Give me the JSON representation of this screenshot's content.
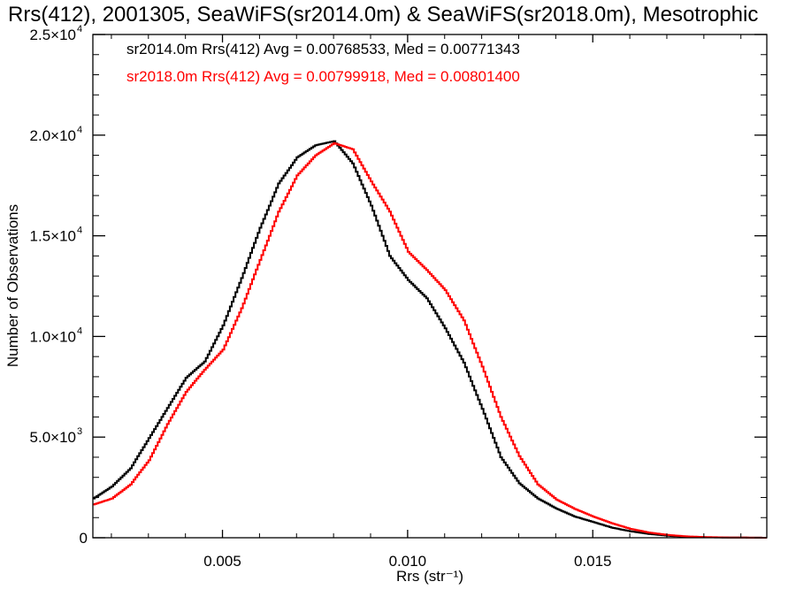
{
  "chart_data": {
    "type": "line",
    "title": "Rrs(412), 2001305, SeaWiFS(sr2014.0m) & SeaWiFS(sr2018.0m), Mesotrophic",
    "xlabel": "Rrs (str⁻¹)",
    "ylabel": "Number of Observations",
    "xlim": [
      0.0015,
      0.0197
    ],
    "ylim": [
      0,
      25000
    ],
    "x_ticks": [
      {
        "value": 0.005,
        "label": "0.005"
      },
      {
        "value": 0.01,
        "label": "0.010"
      },
      {
        "value": 0.015,
        "label": "0.015"
      }
    ],
    "y_ticks": [
      {
        "value": 0,
        "mant": "0",
        "exp": ""
      },
      {
        "value": 5000,
        "mant": "5.0×10",
        "exp": "3"
      },
      {
        "value": 10000,
        "mant": "1.0×10",
        "exp": "4"
      },
      {
        "value": 15000,
        "mant": "1.5×10",
        "exp": "4"
      },
      {
        "value": 20000,
        "mant": "2.0×10",
        "exp": "4"
      },
      {
        "value": 25000,
        "mant": "2.5×10",
        "exp": "4"
      }
    ],
    "grid": false,
    "legend_position": "top-left",
    "series": [
      {
        "name": "sr2014.0m",
        "color": "#000000",
        "legend": "sr2014.0m Rrs(412) Avg = 0.00768533, Med = 0.00771343",
        "x": [
          0.0015,
          0.002,
          0.0025,
          0.003,
          0.0035,
          0.004,
          0.0045,
          0.005,
          0.0055,
          0.006,
          0.0065,
          0.007,
          0.0075,
          0.008,
          0.0085,
          0.009,
          0.0095,
          0.01,
          0.0105,
          0.011,
          0.0115,
          0.012,
          0.0125,
          0.013,
          0.0135,
          0.014,
          0.0145,
          0.015,
          0.0155,
          0.016,
          0.0165,
          0.017,
          0.0175,
          0.018,
          0.0185,
          0.019,
          0.0197
        ],
        "y": [
          1950,
          2550,
          3450,
          4950,
          6450,
          7950,
          8750,
          10550,
          12900,
          15400,
          17600,
          18900,
          19500,
          19700,
          18600,
          16500,
          14000,
          12800,
          11900,
          10400,
          8700,
          6400,
          4000,
          2700,
          1950,
          1450,
          1050,
          780,
          500,
          320,
          190,
          100,
          50,
          25,
          15,
          8,
          0
        ]
      },
      {
        "name": "sr2018.0m",
        "color": "#ff0000",
        "legend": "sr2018.0m Rrs(412) Avg = 0.00799918, Med = 0.00801400",
        "x": [
          0.0015,
          0.002,
          0.0025,
          0.003,
          0.0035,
          0.004,
          0.0045,
          0.005,
          0.0055,
          0.006,
          0.0065,
          0.007,
          0.0075,
          0.008,
          0.0085,
          0.009,
          0.0095,
          0.01,
          0.0105,
          0.011,
          0.0115,
          0.012,
          0.0125,
          0.013,
          0.0135,
          0.014,
          0.0145,
          0.015,
          0.0155,
          0.016,
          0.0165,
          0.017,
          0.0175,
          0.018,
          0.0185,
          0.019,
          0.0197
        ],
        "y": [
          1650,
          1950,
          2650,
          3850,
          5650,
          7250,
          8350,
          9350,
          11400,
          13800,
          16200,
          18000,
          19000,
          19600,
          19300,
          17700,
          16200,
          14200,
          13300,
          12300,
          10800,
          8500,
          6000,
          4050,
          2650,
          1900,
          1430,
          1050,
          720,
          440,
          260,
          140,
          70,
          35,
          18,
          9,
          0
        ]
      }
    ]
  }
}
